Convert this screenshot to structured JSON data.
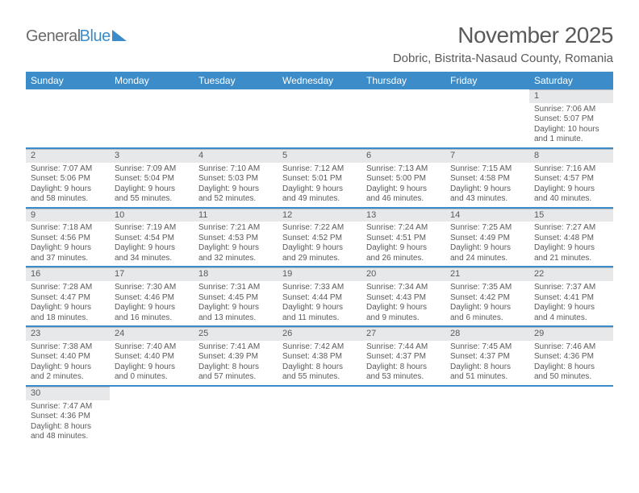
{
  "logo": {
    "part1": "General",
    "part2": "Blue"
  },
  "title": "November 2025",
  "location": "Dobric, Bistrita-Nasaud County, Romania",
  "colors": {
    "header_bg": "#3b8cc9",
    "header_text": "#ffffff",
    "daynum_bg": "#e7e8ea",
    "daynum_border": "#b9bcc0",
    "row_border": "#3b8cc9",
    "text": "#5a5a5a"
  },
  "weekdays": [
    "Sunday",
    "Monday",
    "Tuesday",
    "Wednesday",
    "Thursday",
    "Friday",
    "Saturday"
  ],
  "weeks": [
    [
      null,
      null,
      null,
      null,
      null,
      null,
      {
        "n": "1",
        "sunrise": "Sunrise: 7:06 AM",
        "sunset": "Sunset: 5:07 PM",
        "day1": "Daylight: 10 hours",
        "day2": "and 1 minute."
      }
    ],
    [
      {
        "n": "2",
        "sunrise": "Sunrise: 7:07 AM",
        "sunset": "Sunset: 5:06 PM",
        "day1": "Daylight: 9 hours",
        "day2": "and 58 minutes."
      },
      {
        "n": "3",
        "sunrise": "Sunrise: 7:09 AM",
        "sunset": "Sunset: 5:04 PM",
        "day1": "Daylight: 9 hours",
        "day2": "and 55 minutes."
      },
      {
        "n": "4",
        "sunrise": "Sunrise: 7:10 AM",
        "sunset": "Sunset: 5:03 PM",
        "day1": "Daylight: 9 hours",
        "day2": "and 52 minutes."
      },
      {
        "n": "5",
        "sunrise": "Sunrise: 7:12 AM",
        "sunset": "Sunset: 5:01 PM",
        "day1": "Daylight: 9 hours",
        "day2": "and 49 minutes."
      },
      {
        "n": "6",
        "sunrise": "Sunrise: 7:13 AM",
        "sunset": "Sunset: 5:00 PM",
        "day1": "Daylight: 9 hours",
        "day2": "and 46 minutes."
      },
      {
        "n": "7",
        "sunrise": "Sunrise: 7:15 AM",
        "sunset": "Sunset: 4:58 PM",
        "day1": "Daylight: 9 hours",
        "day2": "and 43 minutes."
      },
      {
        "n": "8",
        "sunrise": "Sunrise: 7:16 AM",
        "sunset": "Sunset: 4:57 PM",
        "day1": "Daylight: 9 hours",
        "day2": "and 40 minutes."
      }
    ],
    [
      {
        "n": "9",
        "sunrise": "Sunrise: 7:18 AM",
        "sunset": "Sunset: 4:56 PM",
        "day1": "Daylight: 9 hours",
        "day2": "and 37 minutes."
      },
      {
        "n": "10",
        "sunrise": "Sunrise: 7:19 AM",
        "sunset": "Sunset: 4:54 PM",
        "day1": "Daylight: 9 hours",
        "day2": "and 34 minutes."
      },
      {
        "n": "11",
        "sunrise": "Sunrise: 7:21 AM",
        "sunset": "Sunset: 4:53 PM",
        "day1": "Daylight: 9 hours",
        "day2": "and 32 minutes."
      },
      {
        "n": "12",
        "sunrise": "Sunrise: 7:22 AM",
        "sunset": "Sunset: 4:52 PM",
        "day1": "Daylight: 9 hours",
        "day2": "and 29 minutes."
      },
      {
        "n": "13",
        "sunrise": "Sunrise: 7:24 AM",
        "sunset": "Sunset: 4:51 PM",
        "day1": "Daylight: 9 hours",
        "day2": "and 26 minutes."
      },
      {
        "n": "14",
        "sunrise": "Sunrise: 7:25 AM",
        "sunset": "Sunset: 4:49 PM",
        "day1": "Daylight: 9 hours",
        "day2": "and 24 minutes."
      },
      {
        "n": "15",
        "sunrise": "Sunrise: 7:27 AM",
        "sunset": "Sunset: 4:48 PM",
        "day1": "Daylight: 9 hours",
        "day2": "and 21 minutes."
      }
    ],
    [
      {
        "n": "16",
        "sunrise": "Sunrise: 7:28 AM",
        "sunset": "Sunset: 4:47 PM",
        "day1": "Daylight: 9 hours",
        "day2": "and 18 minutes."
      },
      {
        "n": "17",
        "sunrise": "Sunrise: 7:30 AM",
        "sunset": "Sunset: 4:46 PM",
        "day1": "Daylight: 9 hours",
        "day2": "and 16 minutes."
      },
      {
        "n": "18",
        "sunrise": "Sunrise: 7:31 AM",
        "sunset": "Sunset: 4:45 PM",
        "day1": "Daylight: 9 hours",
        "day2": "and 13 minutes."
      },
      {
        "n": "19",
        "sunrise": "Sunrise: 7:33 AM",
        "sunset": "Sunset: 4:44 PM",
        "day1": "Daylight: 9 hours",
        "day2": "and 11 minutes."
      },
      {
        "n": "20",
        "sunrise": "Sunrise: 7:34 AM",
        "sunset": "Sunset: 4:43 PM",
        "day1": "Daylight: 9 hours",
        "day2": "and 9 minutes."
      },
      {
        "n": "21",
        "sunrise": "Sunrise: 7:35 AM",
        "sunset": "Sunset: 4:42 PM",
        "day1": "Daylight: 9 hours",
        "day2": "and 6 minutes."
      },
      {
        "n": "22",
        "sunrise": "Sunrise: 7:37 AM",
        "sunset": "Sunset: 4:41 PM",
        "day1": "Daylight: 9 hours",
        "day2": "and 4 minutes."
      }
    ],
    [
      {
        "n": "23",
        "sunrise": "Sunrise: 7:38 AM",
        "sunset": "Sunset: 4:40 PM",
        "day1": "Daylight: 9 hours",
        "day2": "and 2 minutes."
      },
      {
        "n": "24",
        "sunrise": "Sunrise: 7:40 AM",
        "sunset": "Sunset: 4:40 PM",
        "day1": "Daylight: 9 hours",
        "day2": "and 0 minutes."
      },
      {
        "n": "25",
        "sunrise": "Sunrise: 7:41 AM",
        "sunset": "Sunset: 4:39 PM",
        "day1": "Daylight: 8 hours",
        "day2": "and 57 minutes."
      },
      {
        "n": "26",
        "sunrise": "Sunrise: 7:42 AM",
        "sunset": "Sunset: 4:38 PM",
        "day1": "Daylight: 8 hours",
        "day2": "and 55 minutes."
      },
      {
        "n": "27",
        "sunrise": "Sunrise: 7:44 AM",
        "sunset": "Sunset: 4:37 PM",
        "day1": "Daylight: 8 hours",
        "day2": "and 53 minutes."
      },
      {
        "n": "28",
        "sunrise": "Sunrise: 7:45 AM",
        "sunset": "Sunset: 4:37 PM",
        "day1": "Daylight: 8 hours",
        "day2": "and 51 minutes."
      },
      {
        "n": "29",
        "sunrise": "Sunrise: 7:46 AM",
        "sunset": "Sunset: 4:36 PM",
        "day1": "Daylight: 8 hours",
        "day2": "and 50 minutes."
      }
    ],
    [
      {
        "n": "30",
        "sunrise": "Sunrise: 7:47 AM",
        "sunset": "Sunset: 4:36 PM",
        "day1": "Daylight: 8 hours",
        "day2": "and 48 minutes."
      },
      null,
      null,
      null,
      null,
      null,
      null
    ]
  ]
}
